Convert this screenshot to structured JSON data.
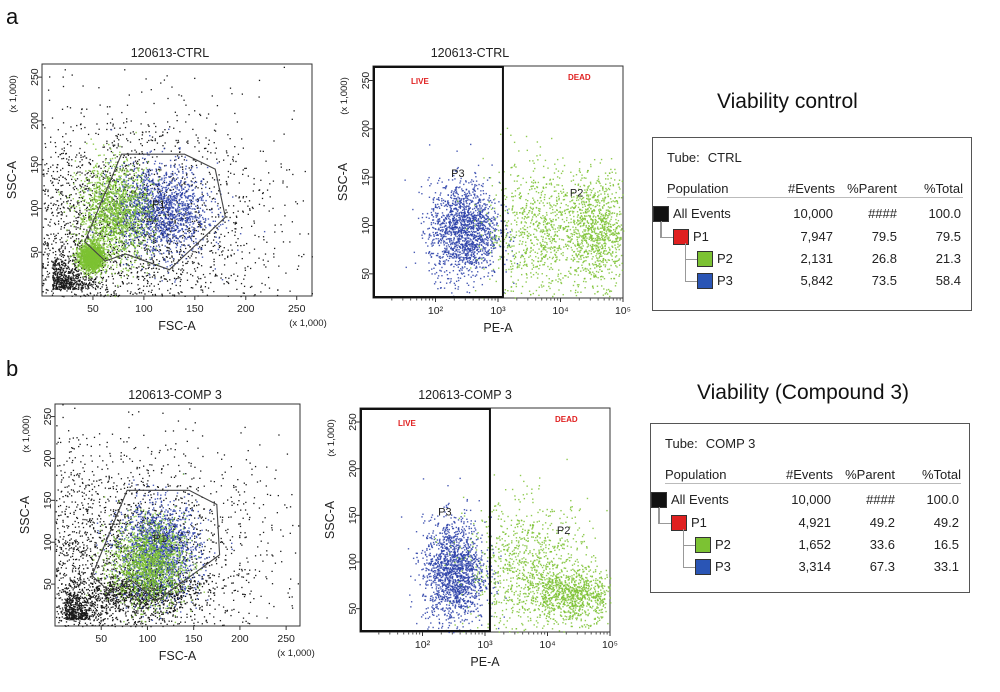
{
  "figure": {
    "panel_a": "a",
    "panel_b": "b",
    "heading_a": "Viability control",
    "heading_b": "Viability (Compound 3)"
  },
  "colors": {
    "black_events": "#1a1a1a",
    "p1_red": "#e02020",
    "p2_green": "#7cc233",
    "p3_blue": "#2a3fa8",
    "gate_line": "#444444",
    "live_dead_label": "#e02020"
  },
  "tables": [
    {
      "tube_label": "Tube:",
      "tube_value": "CTRL",
      "headers": [
        "Population",
        "#Events",
        "%Parent",
        "%Total"
      ],
      "rows": [
        {
          "name": "All Events",
          "events": "10,000",
          "parent": "####",
          "total": "100.0",
          "color": "#111111",
          "level": 0
        },
        {
          "name": "P1",
          "events": "7,947",
          "parent": "79.5",
          "total": "79.5",
          "color": "#e02020",
          "level": 1
        },
        {
          "name": "P2",
          "events": "2,131",
          "parent": "26.8",
          "total": "21.3",
          "color": "#7cc233",
          "level": 2
        },
        {
          "name": "P3",
          "events": "5,842",
          "parent": "73.5",
          "total": "58.4",
          "color": "#2a55b5",
          "level": 2
        }
      ]
    },
    {
      "tube_label": "Tube:",
      "tube_value": "COMP 3",
      "headers": [
        "Population",
        "#Events",
        "%Parent",
        "%Total"
      ],
      "rows": [
        {
          "name": "All Events",
          "events": "10,000",
          "parent": "####",
          "total": "100.0",
          "color": "#111111",
          "level": 0
        },
        {
          "name": "P1",
          "events": "4,921",
          "parent": "49.2",
          "total": "49.2",
          "color": "#e02020",
          "level": 1
        },
        {
          "name": "P2",
          "events": "1,652",
          "parent": "33.6",
          "total": "16.5",
          "color": "#7cc233",
          "level": 2
        },
        {
          "name": "P3",
          "events": "3,314",
          "parent": "67.3",
          "total": "33.1",
          "color": "#2a55b5",
          "level": 2
        }
      ]
    }
  ],
  "chart_data": [
    {
      "type": "scatter",
      "id": "a-fsc",
      "title": "120613-CTRL",
      "xlabel": "FSC-A",
      "ylabel": "SSC-A",
      "x_unit": "(x 1,000)",
      "y_unit": "(x 1,000)",
      "xlim": [
        0,
        265
      ],
      "ylim": [
        0,
        265
      ],
      "x_ticks": [
        "50",
        "100",
        "150",
        "200",
        "250"
      ],
      "y_ticks": [
        "50",
        "100",
        "150",
        "200",
        "250"
      ],
      "gate_label": "P1",
      "gate_polygon": [
        [
          42,
          62
        ],
        [
          78,
          162
        ],
        [
          140,
          162
        ],
        [
          170,
          145
        ],
        [
          180,
          90
        ],
        [
          125,
          30
        ],
        [
          82,
          48
        ],
        [
          62,
          40
        ]
      ],
      "clusters": [
        {
          "population": "P3",
          "cx": 115,
          "cy": 98,
          "sx": 24,
          "sy": 26
        },
        {
          "population": "P2",
          "cx": 70,
          "cy": 95,
          "sx": 18,
          "sy": 28
        },
        {
          "population": "P2",
          "cx": 48,
          "cy": 45,
          "sx": 6,
          "sy": 8
        }
      ]
    },
    {
      "type": "scatter",
      "id": "a-pe",
      "title": "120613-CTRL",
      "xlabel": "PE-A",
      "ylabel": "SSC-A",
      "y_unit": "(x 1,000)",
      "x_scale": "log",
      "xlim": [
        10,
        100000
      ],
      "ylim": [
        25,
        265
      ],
      "x_ticks": [
        "10²",
        "10³",
        "10⁴",
        "10⁵"
      ],
      "y_ticks": [
        "50",
        "100",
        "150",
        "200",
        "250"
      ],
      "gate_live": "LIVE",
      "gate_dead": "DEAD",
      "gate_boundary": 1200,
      "population_labels": [
        "P3",
        "P2"
      ],
      "clusters": [
        {
          "population": "P3",
          "cx_log": 2.45,
          "cy": 95,
          "sx_log": 0.28,
          "sy": 25
        },
        {
          "population": "P2",
          "cx_log": 4.6,
          "cy": 95,
          "sx_log": 0.25,
          "sy": 27
        },
        {
          "population": "P2",
          "cx_log": 3.7,
          "cy": 95,
          "sx_log": 0.45,
          "sy": 35
        }
      ]
    },
    {
      "type": "scatter",
      "id": "b-fsc",
      "title": "120613-COMP 3",
      "xlabel": "FSC-A",
      "ylabel": "SSC-A",
      "x_unit": "(x 1,000)",
      "y_unit": "(x 1,000)",
      "xlim": [
        0,
        265
      ],
      "ylim": [
        0,
        265
      ],
      "x_ticks": [
        "50",
        "100",
        "150",
        "200",
        "250"
      ],
      "y_ticks": [
        "50",
        "100",
        "150",
        "200",
        "250"
      ],
      "gate_label": "P1",
      "gate_polygon": [
        [
          40,
          60
        ],
        [
          78,
          162
        ],
        [
          145,
          162
        ],
        [
          175,
          145
        ],
        [
          178,
          85
        ],
        [
          110,
          30
        ],
        [
          82,
          55
        ],
        [
          60,
          40
        ]
      ],
      "clusters": [
        {
          "population": "P3",
          "cx": 112,
          "cy": 90,
          "sx": 22,
          "sy": 28
        },
        {
          "population": "P2",
          "cx": 100,
          "cy": 75,
          "sx": 20,
          "sy": 25
        }
      ]
    },
    {
      "type": "scatter",
      "id": "b-pe",
      "title": "120613-COMP 3",
      "xlabel": "PE-A",
      "ylabel": "SSC-A",
      "y_unit": "(x 1,000)",
      "x_scale": "log",
      "xlim": [
        10,
        100000
      ],
      "ylim": [
        25,
        265
      ],
      "x_ticks": [
        "10²",
        "10³",
        "10⁴",
        "10⁵"
      ],
      "y_ticks": [
        "50",
        "100",
        "150",
        "200",
        "250"
      ],
      "gate_live": "LIVE",
      "gate_dead": "DEAD",
      "gate_boundary": 1200,
      "population_labels": [
        "P3",
        "P2"
      ],
      "clusters": [
        {
          "population": "P3",
          "cx_log": 2.5,
          "cy": 90,
          "sx_log": 0.25,
          "sy": 28
        },
        {
          "population": "P2",
          "cx_log": 4.4,
          "cy": 65,
          "sx_log": 0.35,
          "sy": 14
        },
        {
          "population": "P2",
          "cx_log": 3.7,
          "cy": 95,
          "sx_log": 0.5,
          "sy": 35
        }
      ]
    }
  ]
}
